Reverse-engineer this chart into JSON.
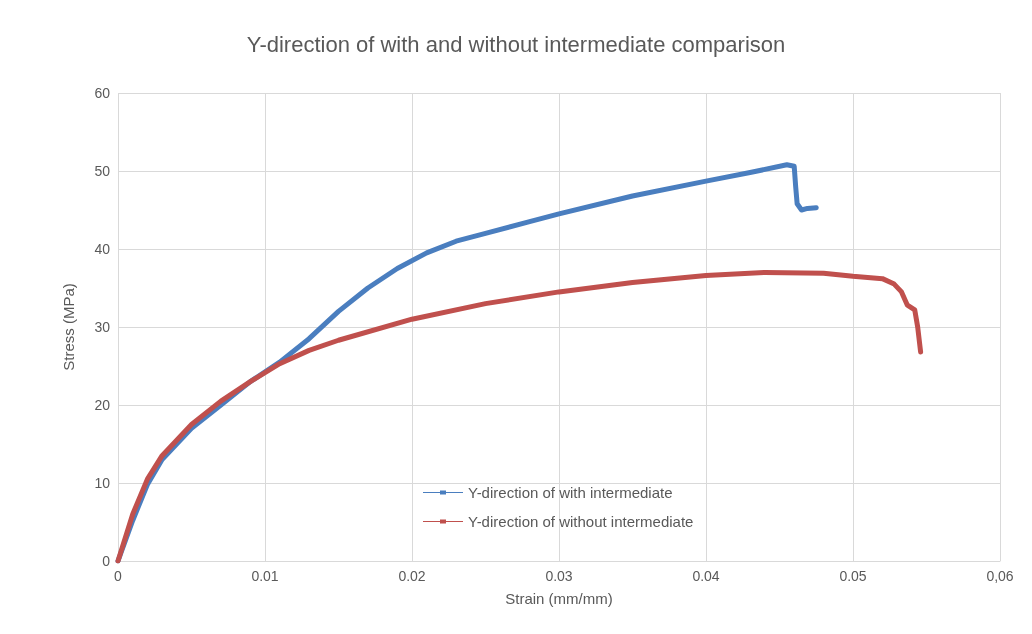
{
  "chart_data": {
    "type": "line",
    "title": "Y-direction of with and without intermediate comparison",
    "xlabel": "Strain (mm/mm)",
    "ylabel": "Stress (MPa)",
    "xlim": [
      0,
      0.06
    ],
    "ylim": [
      0,
      60
    ],
    "xticks": [
      0,
      0.01,
      0.02,
      0.03,
      0.04,
      0.05,
      {
        "value": 0.06,
        "label": "0,06"
      }
    ],
    "yticks": [
      0,
      10,
      20,
      30,
      40,
      50,
      60
    ],
    "grid": true,
    "legend": "bottom",
    "series": [
      {
        "name": "Y-direction of with intermediate",
        "color": "#4a7ebf",
        "x": [
          0,
          0.001,
          0.002,
          0.003,
          0.005,
          0.007,
          0.009,
          0.011,
          0.013,
          0.015,
          0.017,
          0.019,
          0.021,
          0.023,
          0.025,
          0.028,
          0.03,
          0.035,
          0.04,
          0.043,
          0.0455,
          0.046,
          0.0461,
          0.0462,
          0.0465,
          0.0469,
          0.0475
        ],
        "values": [
          0,
          5.2,
          9.8,
          13,
          17,
          20,
          23,
          25.5,
          28.5,
          32,
          35,
          37.5,
          39.5,
          41,
          42,
          43.5,
          44.5,
          46.8,
          48.7,
          49.8,
          50.8,
          50.6,
          48,
          45.8,
          45,
          45.2,
          45.3
        ]
      },
      {
        "name": "Y-direction of without intermediate",
        "color": "#c0504d",
        "x": [
          0,
          0.001,
          0.002,
          0.003,
          0.005,
          0.007,
          0.009,
          0.011,
          0.013,
          0.015,
          0.02,
          0.025,
          0.03,
          0.035,
          0.04,
          0.044,
          0.048,
          0.05,
          0.052,
          0.0528,
          0.0533,
          0.0537,
          0.0542,
          0.0544,
          0.0546
        ],
        "values": [
          0,
          6,
          10.5,
          13.5,
          17.5,
          20.5,
          23,
          25.3,
          27,
          28.3,
          31,
          33,
          34.5,
          35.7,
          36.6,
          37,
          36.9,
          36.5,
          36.2,
          35.5,
          34.5,
          32.8,
          32.2,
          30,
          26.8
        ]
      }
    ]
  }
}
